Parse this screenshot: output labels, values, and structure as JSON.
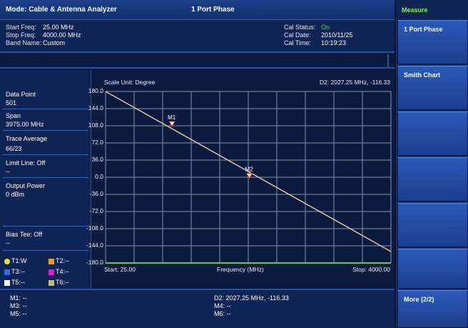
{
  "title_bar": {
    "mode": "Mode: Cable & Antenna Analyzer",
    "measurement": "1 Port Phase"
  },
  "info": {
    "start_freq_label": "Start Freq:",
    "start_freq_value": "25.00 MHz",
    "stop_freq_label": "Stop Freq:",
    "stop_freq_value": "4000.00 MHz",
    "band_name_label": "Band Name:",
    "band_name_value": "Custom",
    "cal_status_label": "Cal Status:",
    "cal_status_value": "On",
    "cal_date_label": "Cal Date:",
    "cal_date_value": "2010/11/25",
    "cal_time_label": "Cal Time:",
    "cal_time_value": "10:19:23"
  },
  "left_panel": {
    "data_point_label": "Data Point",
    "data_point_value": "501",
    "span_label": "Span",
    "span_value": "3975.00 MHz",
    "trace_average_label": "Trace Average",
    "trace_average_value": "66/23",
    "limit_line": "Limit Line: Off",
    "limit_line_value": "--",
    "output_power_label": "Output Power",
    "output_power_value": "0 dBm",
    "bias_tee": "Bias Tee: Off",
    "bias_tee_value": "--",
    "legend": [
      {
        "label": "T1:W",
        "color": "#f2e21a",
        "shape": "dot"
      },
      {
        "label": "T2:--",
        "color": "#f29a1a",
        "shape": "square"
      },
      {
        "label": "T3:--",
        "color": "#2a6ef2",
        "shape": "square"
      },
      {
        "label": "T4:--",
        "color": "#e21ad8",
        "shape": "square"
      },
      {
        "label": "T5:--",
        "color": "#f2f2f2",
        "shape": "square"
      },
      {
        "label": "T6:--",
        "color": "#c8b87a",
        "shape": "square"
      }
    ]
  },
  "chart": {
    "scale_unit": "Scale Unit: Degree",
    "delta_readout": "D2: 2027.25 MHz, -116.33",
    "start_label": "Start: 25.00",
    "x_axis_label": "Frequency (MHz)",
    "stop_label": "Stop: 4000.00",
    "trace_color": "#d8c89a",
    "grid_color": "#8a94a8",
    "bottom_line_color": "#4ad84a"
  },
  "chart_data": {
    "type": "line",
    "title": "Scale Unit: Degree",
    "xlabel": "Frequency (MHz)",
    "ylabel": "",
    "xlim": [
      25,
      4000
    ],
    "ylim": [
      -180,
      180
    ],
    "y_ticks": [
      "180.0",
      "144.0",
      "108.0",
      "72.0",
      "36.0",
      "0.0",
      "-36.0",
      "-72.0",
      "-108.0",
      "-144.0",
      "-180.0"
    ],
    "series": [
      {
        "x": [
          25,
          4000
        ],
        "y": [
          180,
          -156
        ]
      }
    ],
    "markers": [
      {
        "label": "M1",
        "x": 950,
        "y": 108
      },
      {
        "label": "M2",
        "x": 2027.25,
        "y": -1
      }
    ]
  },
  "bottom_markers": {
    "m1": "M1: --",
    "m3": "M3: --",
    "m5": "M5: --",
    "d2": "D2: 2027.25 MHz, -116.33",
    "m4": "M4: --",
    "m6": "M6: --"
  },
  "menu": {
    "title": "Measure",
    "keys": [
      "1 Port Phase",
      "Smith Chart",
      "",
      "",
      "",
      "",
      "More (2/2)"
    ]
  }
}
